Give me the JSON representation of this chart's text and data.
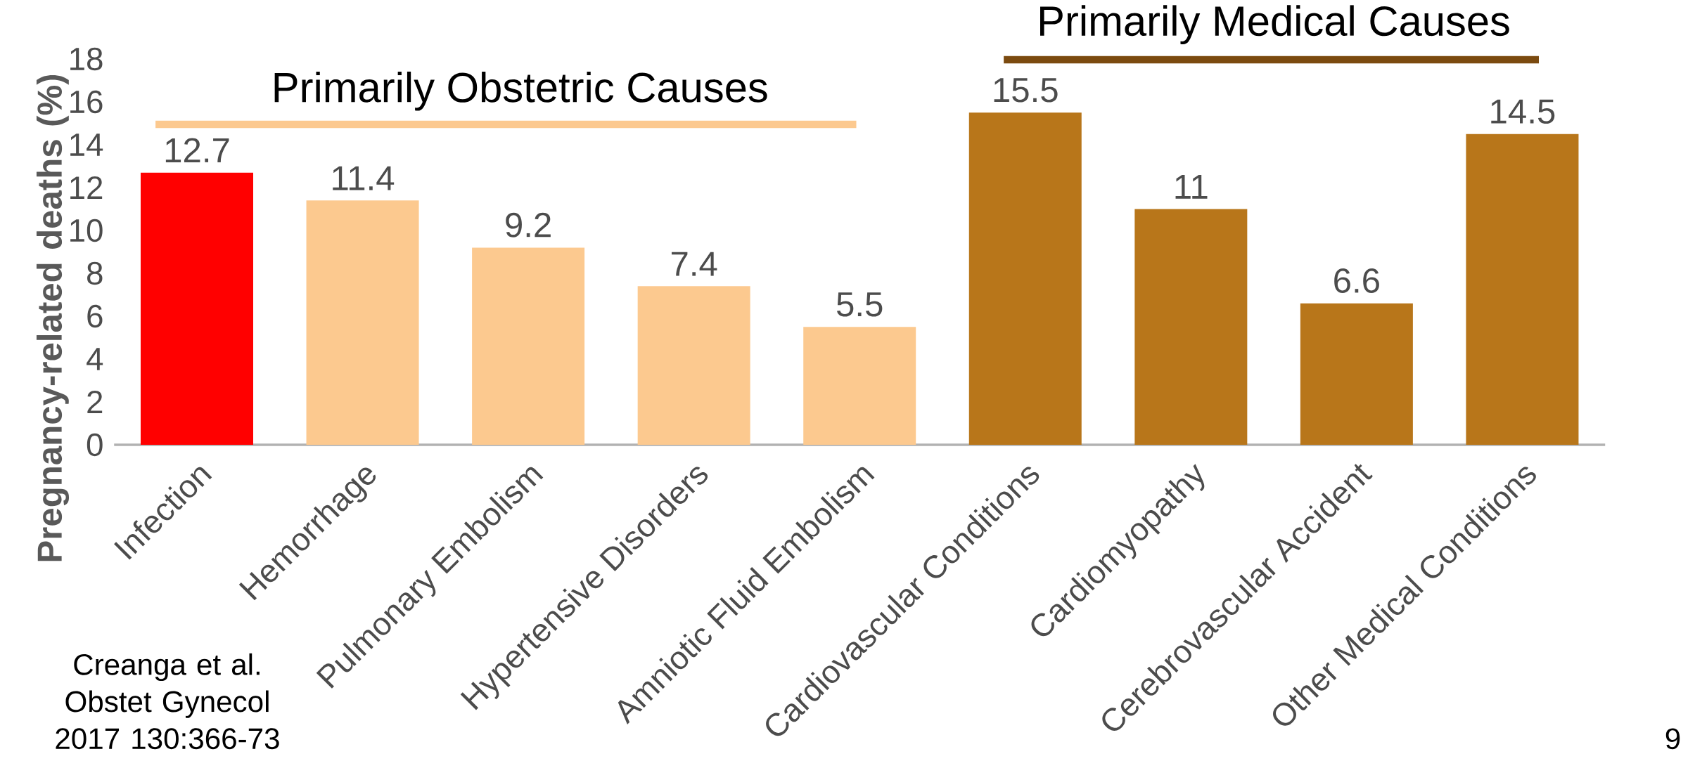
{
  "chart_data": {
    "type": "bar",
    "ylabel": "Pregnancy-related deaths (%)",
    "categories": [
      "Infection",
      "Hemorrhage",
      "Pulmonary Embolism",
      "Hypertensive Disorders",
      "Amniotic Fluid Embolism",
      "Cardiovascular Conditions",
      "Cardiomyopathy",
      "Cerebrovascular Accident",
      "Other Medical Conditions"
    ],
    "values": [
      12.7,
      11.4,
      9.2,
      7.4,
      5.5,
      15.5,
      11,
      6.6,
      14.5
    ],
    "colors": [
      "#ff0000",
      "#fcc98f",
      "#fcc98f",
      "#fcc98f",
      "#fcc98f",
      "#b8761a",
      "#b8761a",
      "#b8761a",
      "#b8761a"
    ],
    "data_labels": true,
    "ylim": [
      0,
      18
    ],
    "yticks": [
      0,
      2,
      4,
      6,
      8,
      10,
      12,
      14,
      16,
      18
    ],
    "grid": false,
    "annotations": [
      "Primarily Obstetric Causes",
      "Primarily Medical Causes",
      "Creanga et al. Obstet Gynecol 2017 130:366-73",
      "9"
    ]
  }
}
